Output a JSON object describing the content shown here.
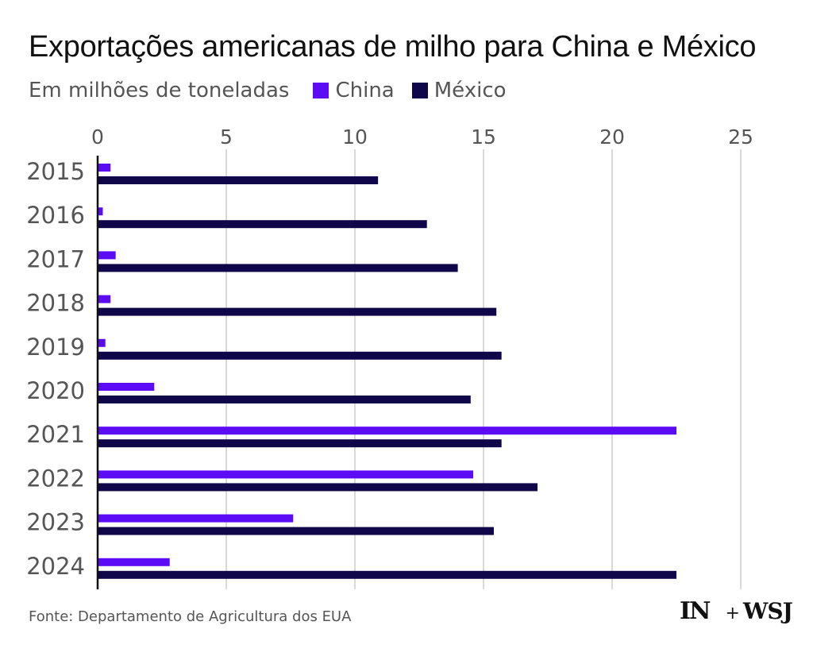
{
  "title": "Exportações americanas de milho para China e México",
  "subtitle": "Em milhões de toneladas",
  "source": "Fonte: Departamento de Agricultura dos EUA",
  "brand": {
    "logo_in": "IN",
    "plus": "+",
    "logo_wsj": "WSJ"
  },
  "colors": {
    "china": "#5b0cf5",
    "mexico": "#10064a",
    "grid": "#d9d9d9",
    "axis": "#111111"
  },
  "chart_data": {
    "type": "bar",
    "orientation": "horizontal",
    "categories": [
      "2015",
      "2016",
      "2017",
      "2018",
      "2019",
      "2020",
      "2021",
      "2022",
      "2023",
      "2024"
    ],
    "series": [
      {
        "name": "China",
        "values": [
          0.5,
          0.2,
          0.7,
          0.5,
          0.3,
          2.2,
          22.5,
          14.6,
          7.6,
          2.8
        ]
      },
      {
        "name": "México",
        "values": [
          10.9,
          12.8,
          14.0,
          15.5,
          15.7,
          14.5,
          15.7,
          17.1,
          15.4,
          22.5
        ]
      }
    ],
    "xlim": [
      0,
      25
    ],
    "xticks": [
      "0",
      "5",
      "10",
      "15",
      "20",
      "25"
    ],
    "xtick_values": [
      0,
      5,
      10,
      15,
      20,
      25
    ],
    "grid": true,
    "legend_position": "top-left",
    "xaxis_position": "top"
  }
}
